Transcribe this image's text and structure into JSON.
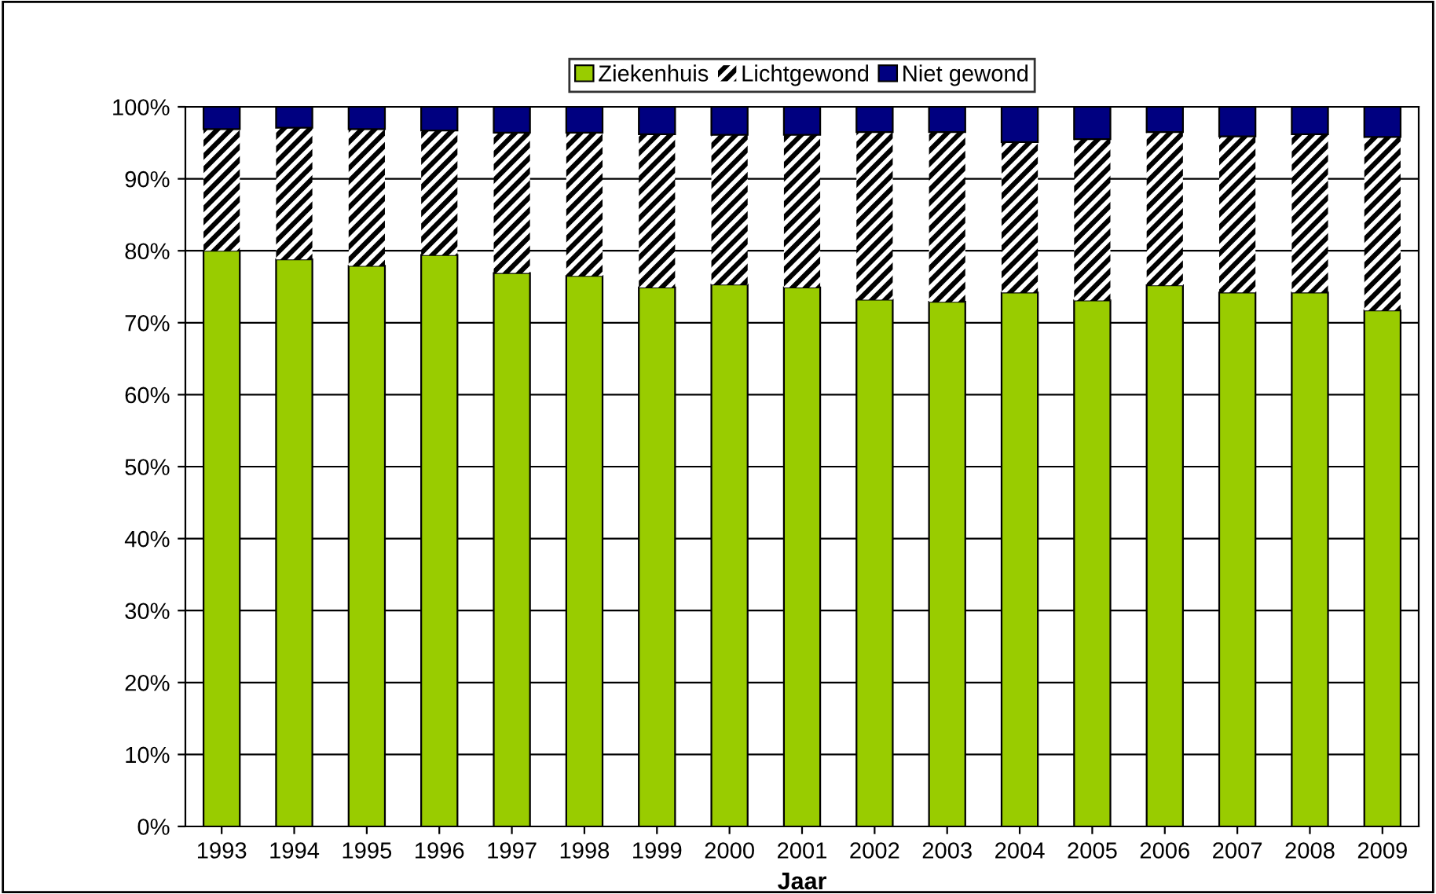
{
  "chart_data": {
    "type": "bar",
    "stacked": true,
    "xlabel": "Jaar",
    "categories": [
      "1993",
      "1994",
      "1995",
      "1996",
      "1997",
      "1998",
      "1999",
      "2000",
      "2001",
      "2002",
      "2003",
      "2004",
      "2005",
      "2006",
      "2007",
      "2008",
      "2009"
    ],
    "series": [
      {
        "name": "Ziekenhuis",
        "color": "#99cc00",
        "values": [
          80.0,
          78.8,
          77.9,
          79.4,
          76.9,
          76.5,
          74.9,
          75.3,
          74.9,
          73.2,
          72.9,
          74.2,
          73.1,
          75.2,
          74.2,
          74.2,
          71.7
        ]
      },
      {
        "name": "Lichtgewond",
        "color": "#000000",
        "values": [
          16.9,
          18.3,
          19.0,
          17.3,
          19.5,
          19.9,
          21.3,
          20.8,
          21.2,
          23.3,
          23.6,
          20.9,
          22.4,
          21.3,
          21.7,
          22.0,
          24.1
        ]
      },
      {
        "name": "Niet gewond",
        "color": "#000080",
        "values": [
          3.1,
          2.9,
          3.1,
          3.3,
          3.6,
          3.6,
          3.8,
          3.9,
          3.9,
          3.5,
          3.5,
          4.9,
          4.5,
          3.5,
          4.1,
          3.8,
          4.2
        ]
      }
    ],
    "ylim": [
      0,
      100
    ],
    "yticks": [
      {
        "value": 0,
        "label": "0%"
      },
      {
        "value": 10,
        "label": "10%"
      },
      {
        "value": 20,
        "label": "20%"
      },
      {
        "value": 30,
        "label": "30%"
      },
      {
        "value": 40,
        "label": "40%"
      },
      {
        "value": 50,
        "label": "50%"
      },
      {
        "value": 60,
        "label": "60%"
      },
      {
        "value": 70,
        "label": "70%"
      },
      {
        "value": 80,
        "label": "80%"
      },
      {
        "value": 90,
        "label": "90%"
      },
      {
        "value": 100,
        "label": "100%"
      }
    ],
    "grid": "y",
    "legend": "top"
  }
}
